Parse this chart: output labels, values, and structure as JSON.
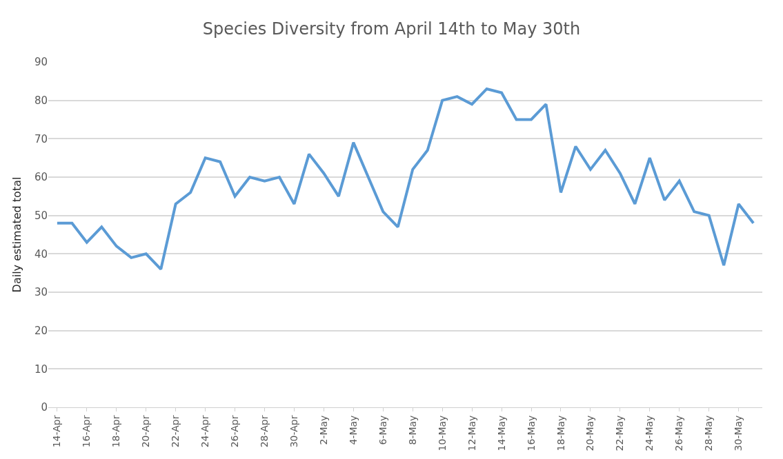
{
  "chart_data": {
    "type": "line",
    "title": "Species Diversity from April 14th to May 30th",
    "ylabel": "Daily estimated total",
    "categories": [
      "14-Apr",
      null,
      "16-Apr",
      null,
      "18-Apr",
      null,
      "20-Apr",
      null,
      "22-Apr",
      null,
      "24-Apr",
      null,
      "26-Apr",
      null,
      "28-Apr",
      null,
      "30-Apr",
      null,
      "2-May",
      null,
      "4-May",
      null,
      "6-May",
      null,
      "8-May",
      null,
      "10-May",
      null,
      "12-May",
      null,
      "14-May",
      null,
      "16-May",
      null,
      "18-May",
      null,
      "20-May",
      null,
      "22-May",
      null,
      "24-May",
      null,
      "26-May",
      null,
      "28-May",
      null,
      "30-May",
      null
    ],
    "series": [
      {
        "color": "#5b9bd5",
        "values": [
          48,
          48,
          43,
          47,
          42,
          39,
          40,
          36,
          53,
          56,
          65,
          64,
          55,
          60,
          59,
          60,
          53,
          66,
          61,
          55,
          69,
          60,
          51,
          47,
          62,
          67,
          80,
          81,
          79,
          83,
          82,
          75,
          75,
          79,
          56,
          68,
          62,
          67,
          61,
          53,
          65,
          54,
          59,
          51,
          50,
          37,
          53,
          48
        ]
      }
    ],
    "ylim": [
      0,
      90
    ],
    "yticks": [
      0,
      10,
      20,
      30,
      40,
      50,
      60,
      70,
      80,
      90
    ],
    "grid": "y",
    "marker": "none",
    "line_style": "solid"
  }
}
